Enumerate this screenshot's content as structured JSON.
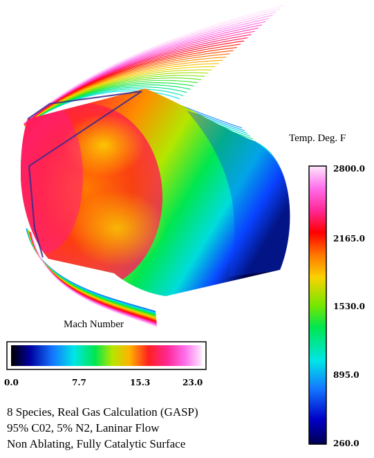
{
  "temperature_legend": {
    "title": "Temp. Deg. F",
    "ticks": [
      "2800.0",
      "2165.0",
      "1530.0",
      "895.0",
      "260.0"
    ],
    "range": [
      260.0,
      2800.0
    ]
  },
  "mach_legend": {
    "title": "Mach Number",
    "ticks": [
      "0.0",
      "7.7",
      "15.3",
      "23.0"
    ],
    "range": [
      0.0,
      23.0
    ]
  },
  "notes": [
    "8 Species, Real Gas Calculation (GASP)",
    "95% C02, 5% N2, Laninar Flow",
    "Non Ablating, Fully Catalytic Surface"
  ],
  "colors": {
    "background": "#ffffff",
    "colormap": [
      "#000050",
      "#0000c8",
      "#1478ff",
      "#00e6e6",
      "#00e650",
      "#78e600",
      "#fad200",
      "#ff7800",
      "#ff0000",
      "#ff2896",
      "#ff6eeb",
      "#ffd2fa",
      "#ffffff"
    ]
  }
}
